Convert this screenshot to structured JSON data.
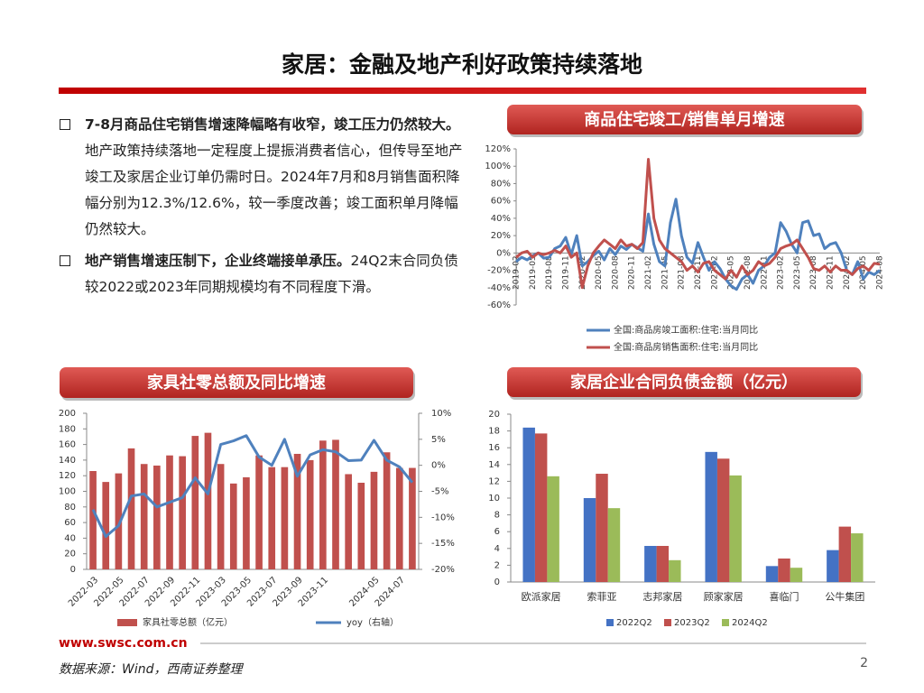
{
  "header": {
    "title": "家居：金融及地产利好政策持续落地"
  },
  "bullets": [
    {
      "bold": "7-8月商品住宅销售增速降幅略有收窄，竣工压力仍然较大。",
      "text": "地产政策持续落地一定程度上提振消费者信心，但传导至地产竣工及家居企业订单仍需时日。2024年7月和8月销售面积降幅分别为12.3%/12.6%，较一季度改善；竣工面积单月降幅仍然较大。"
    },
    {
      "bold": "地产销售增速压制下，企业终端接单承压。",
      "text": "24Q2末合同负债较2022或2023年同期规模均有不同程度下滑。"
    }
  ],
  "chart_data": [
    {
      "type": "line",
      "title": "商品住宅竣工/销售单月增速",
      "categories": [
        "2019-02",
        null,
        null,
        "2019-05",
        null,
        null,
        "2019-08",
        null,
        null,
        "2019-11",
        null,
        null,
        "2020-02",
        null,
        null,
        "2020-05",
        null,
        null,
        "2020-08",
        null,
        null,
        "2020-11",
        null,
        null,
        "2021-02",
        null,
        null,
        "2021-05",
        null,
        null,
        "2021-08",
        null,
        null,
        "2021-11",
        null,
        null,
        "2022-02",
        null,
        null,
        "2022-05",
        null,
        null,
        "2022-08",
        null,
        null,
        "2022-11",
        null,
        null,
        "2023-02",
        null,
        null,
        "2023-05",
        null,
        null,
        "2023-08",
        null,
        null,
        "2023-11",
        null,
        null,
        "2024-02",
        null,
        null,
        "2024-05",
        null,
        null,
        "2024-08"
      ],
      "series": [
        {
          "name": "全国:商品房竣工面积:住宅:当月同比",
          "color": "#4f81bd",
          "values": [
            -10,
            -5,
            -8,
            -3,
            0,
            -6,
            -5,
            5,
            8,
            18,
            -2,
            20,
            -15,
            -10,
            -3,
            2,
            -8,
            5,
            -2,
            8,
            4,
            10,
            6,
            2,
            45,
            10,
            -10,
            -15,
            35,
            62,
            20,
            -5,
            -12,
            12,
            -5,
            -20,
            -10,
            -18,
            -30,
            -38,
            -42,
            -30,
            -25,
            -35,
            -20,
            -15,
            -5,
            0,
            35,
            25,
            10,
            0,
            35,
            37,
            20,
            22,
            5,
            10,
            12,
            0,
            -20,
            -25,
            -10,
            -30,
            -22,
            -25,
            -20
          ]
        },
        {
          "name": "全国:商品房销售面积:住宅:当月同比",
          "color": "#c0504d",
          "values": [
            -5,
            0,
            2,
            -5,
            0,
            -2,
            0,
            3,
            0,
            8,
            -5,
            0,
            -40,
            -15,
            0,
            8,
            15,
            10,
            5,
            15,
            8,
            10,
            5,
            12,
            108,
            40,
            15,
            5,
            0,
            -5,
            -10,
            -20,
            -15,
            -22,
            -12,
            -10,
            -20,
            -25,
            -30,
            -20,
            -28,
            -15,
            -25,
            -20,
            -10,
            -15,
            -12,
            -5,
            5,
            8,
            10,
            15,
            5,
            -5,
            -18,
            -20,
            -15,
            -22,
            -15,
            -20,
            -20,
            -25,
            -18,
            -15,
            -20,
            -12,
            -13
          ]
        }
      ],
      "ylim": [
        -60,
        120
      ],
      "yticks": [
        {
          "value": -60,
          "label": "-60%"
        },
        {
          "value": -40,
          "label": "-40%"
        },
        {
          "value": -20,
          "label": "-20%"
        },
        {
          "value": 0,
          "label": "0%"
        },
        {
          "value": 20,
          "label": "20%"
        },
        {
          "value": 40,
          "label": "40%"
        },
        {
          "value": 60,
          "label": "60%"
        },
        {
          "value": 80,
          "label": "80%"
        },
        {
          "value": 100,
          "label": "100%"
        },
        {
          "value": 120,
          "label": "120%"
        }
      ]
    },
    {
      "type": "combo",
      "title": "家具社零总额及同比增速",
      "categories": [
        "2022-03",
        null,
        "2022-05",
        null,
        "2022-07",
        null,
        "2022-09",
        null,
        "2022-11",
        null,
        "2023-03",
        null,
        "2023-05",
        null,
        "2023-07",
        null,
        "2023-09",
        null,
        "2023-11",
        null,
        null,
        null,
        "2024-05",
        null,
        "2024-07",
        null
      ],
      "series": [
        {
          "name": "家具社零总额（亿元）",
          "color": "#c0504d",
          "values": [
            126,
            112,
            123,
            155,
            135,
            133,
            146,
            145,
            171,
            175,
            135,
            110,
            118,
            146,
            131,
            131,
            148,
            140,
            165,
            166,
            122,
            111,
            125,
            150,
            130,
            130
          ]
        },
        {
          "name": "yoy（右轴）",
          "color": "#4f81bd",
          "axis": "y2",
          "values": [
            -8.5,
            -13.7,
            -11.6,
            -5.9,
            -5.5,
            -8,
            -7.1,
            -6.2,
            -2.4,
            -5.5,
            4,
            4.7,
            5.7,
            1.6,
            0,
            5,
            -2.1,
            2,
            3,
            2.6,
            0.9,
            1,
            4.8,
            1,
            -0.3,
            -3.3
          ]
        }
      ],
      "ylim": [
        0,
        200
      ],
      "yticks": [
        0,
        20,
        40,
        60,
        80,
        100,
        120,
        140,
        160,
        180,
        200
      ],
      "y2lim": [
        -20,
        10
      ],
      "y2ticks": [
        {
          "value": -20,
          "label": "-20%"
        },
        {
          "value": -15,
          "label": "-15%"
        },
        {
          "value": -10,
          "label": "-10%"
        },
        {
          "value": -5,
          "label": "-5%"
        },
        {
          "value": 0,
          "label": "0%"
        },
        {
          "value": 5,
          "label": "5%"
        },
        {
          "value": 10,
          "label": "10%"
        }
      ]
    },
    {
      "type": "bar",
      "title": "家居企业合同负债金额（亿元）",
      "categories": [
        "欧派家居",
        "索菲亚",
        "志邦家居",
        "顾家家居",
        "喜临门",
        "公牛集团"
      ],
      "series": [
        {
          "name": "2022Q2",
          "color": "#4472c4",
          "values": [
            18.4,
            10.0,
            4.3,
            15.5,
            1.9,
            3.8
          ]
        },
        {
          "name": "2023Q2",
          "color": "#c0504d",
          "values": [
            17.7,
            12.9,
            4.3,
            14.7,
            2.8,
            6.6
          ]
        },
        {
          "name": "2024Q2",
          "color": "#9bbb59",
          "values": [
            12.6,
            8.8,
            2.6,
            12.7,
            1.7,
            5.8
          ]
        }
      ],
      "ylim": [
        0,
        20
      ],
      "yticks": [
        0,
        2,
        4,
        6,
        8,
        10,
        12,
        14,
        16,
        18,
        20
      ]
    }
  ],
  "footer": {
    "site": "www.swsc.com.cn",
    "source": "数据来源：Wind，西南证券整理",
    "page": "2"
  }
}
